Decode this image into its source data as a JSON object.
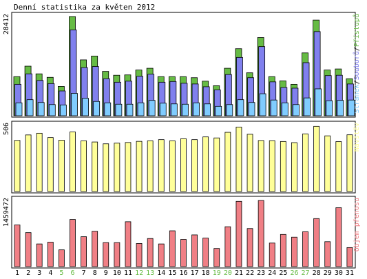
{
  "colors": {
    "pristupu": "#66bb44",
    "souboru": "#8080ee",
    "stranek": "#80ccff",
    "navstev": "#ffff99",
    "objem": "#f07f85",
    "weekend": "#66bb44",
    "weekday": "#000000",
    "panel_bg": "#ffffff",
    "border": "#000000"
  },
  "chart_data": {
    "type": "bar",
    "title": "Denní statistika za květen 2012",
    "categories": [
      "1",
      "2",
      "3",
      "4",
      "5",
      "6",
      "7",
      "8",
      "9",
      "10",
      "11",
      "12",
      "13",
      "14",
      "15",
      "16",
      "17",
      "18",
      "19",
      "20",
      "21",
      "22",
      "23",
      "24",
      "25",
      "26",
      "27",
      "28",
      "29",
      "30",
      "31"
    ],
    "weekend_days": [
      "5",
      "6",
      "12",
      "13",
      "19",
      "20",
      "26",
      "27"
    ],
    "panels": [
      {
        "name": "hits",
        "max_label": "28412",
        "ylim": [
          0,
          28412
        ],
        "legend": [
          {
            "text": "Stránek",
            "color_key": "stranek"
          },
          {
            "text": "/",
            "color_key": "weekday"
          },
          {
            "text": "Souborů",
            "color_key": "souboru"
          },
          {
            "text": "/",
            "color_key": "weekday"
          },
          {
            "text": "Přístupů",
            "color_key": "pristupu"
          }
        ],
        "series": [
          {
            "key": "pristupu",
            "values": [
              11200,
              14200,
              12000,
              11000,
              8400,
              28412,
              16000,
              17100,
              12700,
              11600,
              11700,
              13100,
              13600,
              11200,
              11200,
              11200,
              10900,
              9900,
              8600,
              13600,
              19200,
              12300,
              22400,
              11200,
              10000,
              9000,
              18000,
              27400,
              13100,
              13400,
              10600
            ]
          },
          {
            "key": "souboru",
            "values": [
              9000,
              12000,
              10100,
              9200,
              7100,
              24600,
              13800,
              14100,
              10600,
              9600,
              9900,
              11300,
              11900,
              9600,
              9800,
              9300,
              9100,
              8300,
              7400,
              11800,
              16700,
              10900,
              19800,
              9700,
              8100,
              7900,
              15200,
              24100,
              11500,
              11600,
              9100
            ]
          },
          {
            "key": "stranek",
            "values": [
              3700,
              4600,
              3800,
              3200,
              3100,
              6400,
              5000,
              4100,
              3700,
              3300,
              3300,
              3700,
              4400,
              3600,
              3400,
              3300,
              3700,
              3400,
              2700,
              3200,
              4600,
              3800,
              6300,
              4500,
              3700,
              3200,
              5100,
              7700,
              4300,
              4400,
              4500
            ]
          }
        ]
      },
      {
        "name": "visits",
        "max_label": "506",
        "ylim": [
          0,
          506
        ],
        "legend": [
          {
            "text": "Návštěv",
            "color_key": "navstev"
          }
        ],
        "series": [
          {
            "key": "navstev",
            "values": [
              391,
              433,
              446,
              413,
              393,
              456,
              388,
              379,
              365,
              370,
              375,
              384,
              388,
              397,
              388,
              404,
              397,
              418,
              410,
              453,
              493,
              438,
              390,
              389,
              383,
              374,
              441,
              499,
              426,
              382,
              434
            ]
          }
        ]
      },
      {
        "name": "volume",
        "max_label": "1459472",
        "ylim": [
          0,
          1459472
        ],
        "legend": [
          {
            "text": "Objem přenosu",
            "color_key": "objem"
          }
        ],
        "series": [
          {
            "key": "objem",
            "values": [
              920000,
              750000,
              500000,
              540000,
              370000,
              1040000,
              660000,
              780000,
              530000,
              530000,
              990000,
              510000,
              620000,
              500000,
              790000,
              600000,
              700000,
              630000,
              400000,
              880000,
              1440000,
              840000,
              1460000,
              520000,
              710000,
              650000,
              770000,
              1060000,
              550000,
              1300000,
              420000
            ]
          }
        ]
      }
    ]
  }
}
